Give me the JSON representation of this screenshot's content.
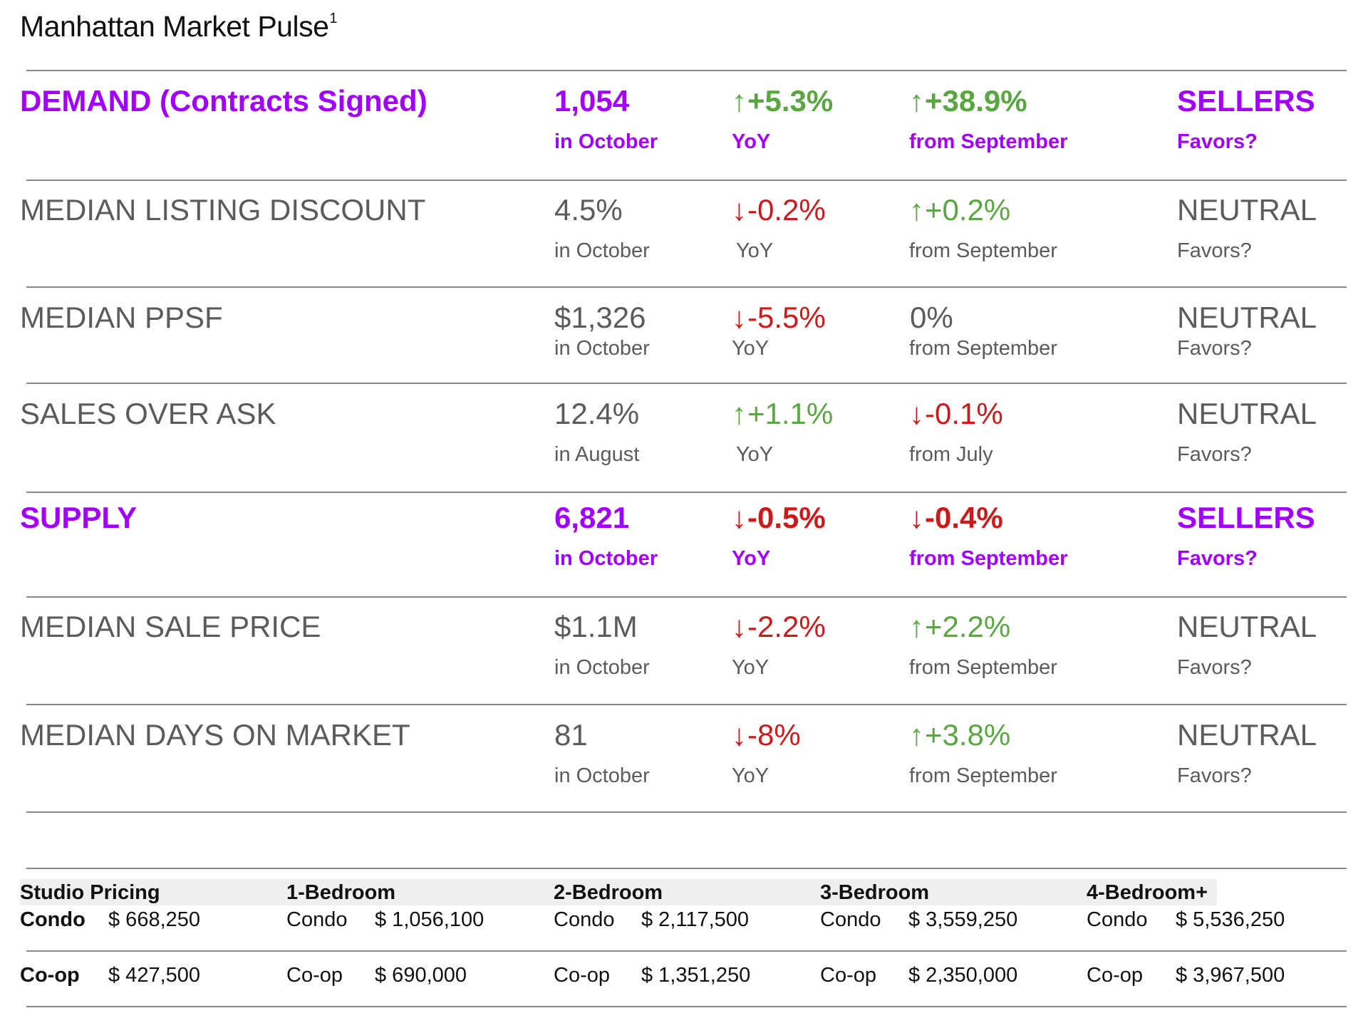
{
  "title": {
    "text": "Manhattan Market Pulse",
    "footnote": "1"
  },
  "rows": [
    {
      "label": "DEMAND (Contracts Signed)",
      "value": "1,054",
      "value_sub": "in October",
      "yoy_arrow": "↑",
      "yoy": "+5.3%",
      "yoy_sub": "YoY",
      "yoy_dir": "up",
      "mom_arrow": "↑",
      "mom": "+38.9%",
      "mom_sub": "from September",
      "mom_dir": "up",
      "favors": "SELLERS",
      "favors_sub": "Favors?",
      "style": "purple"
    },
    {
      "label": "MEDIAN LISTING DISCOUNT",
      "value": "4.5%",
      "value_sub": "in October",
      "yoy_arrow": "↓",
      "yoy": "-0.2%",
      "yoy_sub": "YoY",
      "yoy_dir": "down",
      "mom_arrow": "↑",
      "mom": "+0.2%",
      "mom_sub": "from September",
      "mom_dir": "up",
      "favors": "NEUTRAL",
      "favors_sub": "Favors?",
      "style": "gray"
    },
    {
      "label": "MEDIAN PPSF",
      "value": "$1,326",
      "value_sub": "in October",
      "yoy_arrow": "↓",
      "yoy": "-5.5%",
      "yoy_sub": "YoY",
      "yoy_dir": "down",
      "mom_arrow": "",
      "mom": "0%",
      "mom_sub": "from September",
      "mom_dir": "flat",
      "favors": "NEUTRAL",
      "favors_sub": "Favors?",
      "style": "gray"
    },
    {
      "label": "SALES OVER ASK",
      "value": "12.4%",
      "value_sub": "in August",
      "yoy_arrow": "↑",
      "yoy": "+1.1%",
      "yoy_sub": "YoY",
      "yoy_dir": "up",
      "mom_arrow": "↓",
      "mom": "-0.1%",
      "mom_sub": "from July",
      "mom_dir": "down",
      "favors": "NEUTRAL",
      "favors_sub": "Favors?",
      "style": "gray"
    },
    {
      "label": "SUPPLY",
      "value": "6,821",
      "value_sub": "in October",
      "yoy_arrow": "↓",
      "yoy": "-0.5%",
      "yoy_sub": "YoY",
      "yoy_dir": "down",
      "mom_arrow": "↓",
      "mom": "-0.4%",
      "mom_sub": "from September",
      "mom_dir": "down",
      "favors": "SELLERS",
      "favors_sub": "Favors?",
      "style": "purple"
    },
    {
      "label": "MEDIAN SALE PRICE",
      "value": "$1.1M",
      "value_sub": "in October",
      "yoy_arrow": "↓",
      "yoy": "-2.2%",
      "yoy_sub": "YoY",
      "yoy_dir": "down",
      "mom_arrow": "↑",
      "mom": "+2.2%",
      "mom_sub": "from September",
      "mom_dir": "up",
      "favors": "NEUTRAL",
      "favors_sub": "Favors?",
      "style": "gray"
    },
    {
      "label": "MEDIAN DAYS ON MARKET",
      "value": "81",
      "value_sub": "in October",
      "yoy_arrow": "↓",
      "yoy": "-8%",
      "yoy_sub": "YoY",
      "yoy_dir": "down",
      "mom_arrow": "↑",
      "mom": "+3.8%",
      "mom_sub": "from September",
      "mom_dir": "up",
      "favors": "NEUTRAL",
      "favors_sub": "Favors?",
      "style": "gray"
    }
  ],
  "pricing": {
    "headers": [
      "Studio Pricing",
      "1-Bedroom",
      "2-Bedroom",
      "3-Bedroom",
      "4-Bedroom+"
    ],
    "condo_label": "Condo",
    "coop_label": "Co-op",
    "condo": [
      "$ 668,250",
      "$ 1,056,100",
      "$ 2,117,500",
      "$ 3,559,250",
      "$ 5,536,250"
    ],
    "coop": [
      "$ 427,500",
      "$ 690,000",
      "$ 1,351,250",
      "$ 2,350,000",
      "$ 3,967,500"
    ]
  },
  "colors": {
    "accent_purple": "#a100ff",
    "up_green": "#5aa640",
    "down_red": "#cc1a1a",
    "text_gray": "#5b5b5b"
  }
}
